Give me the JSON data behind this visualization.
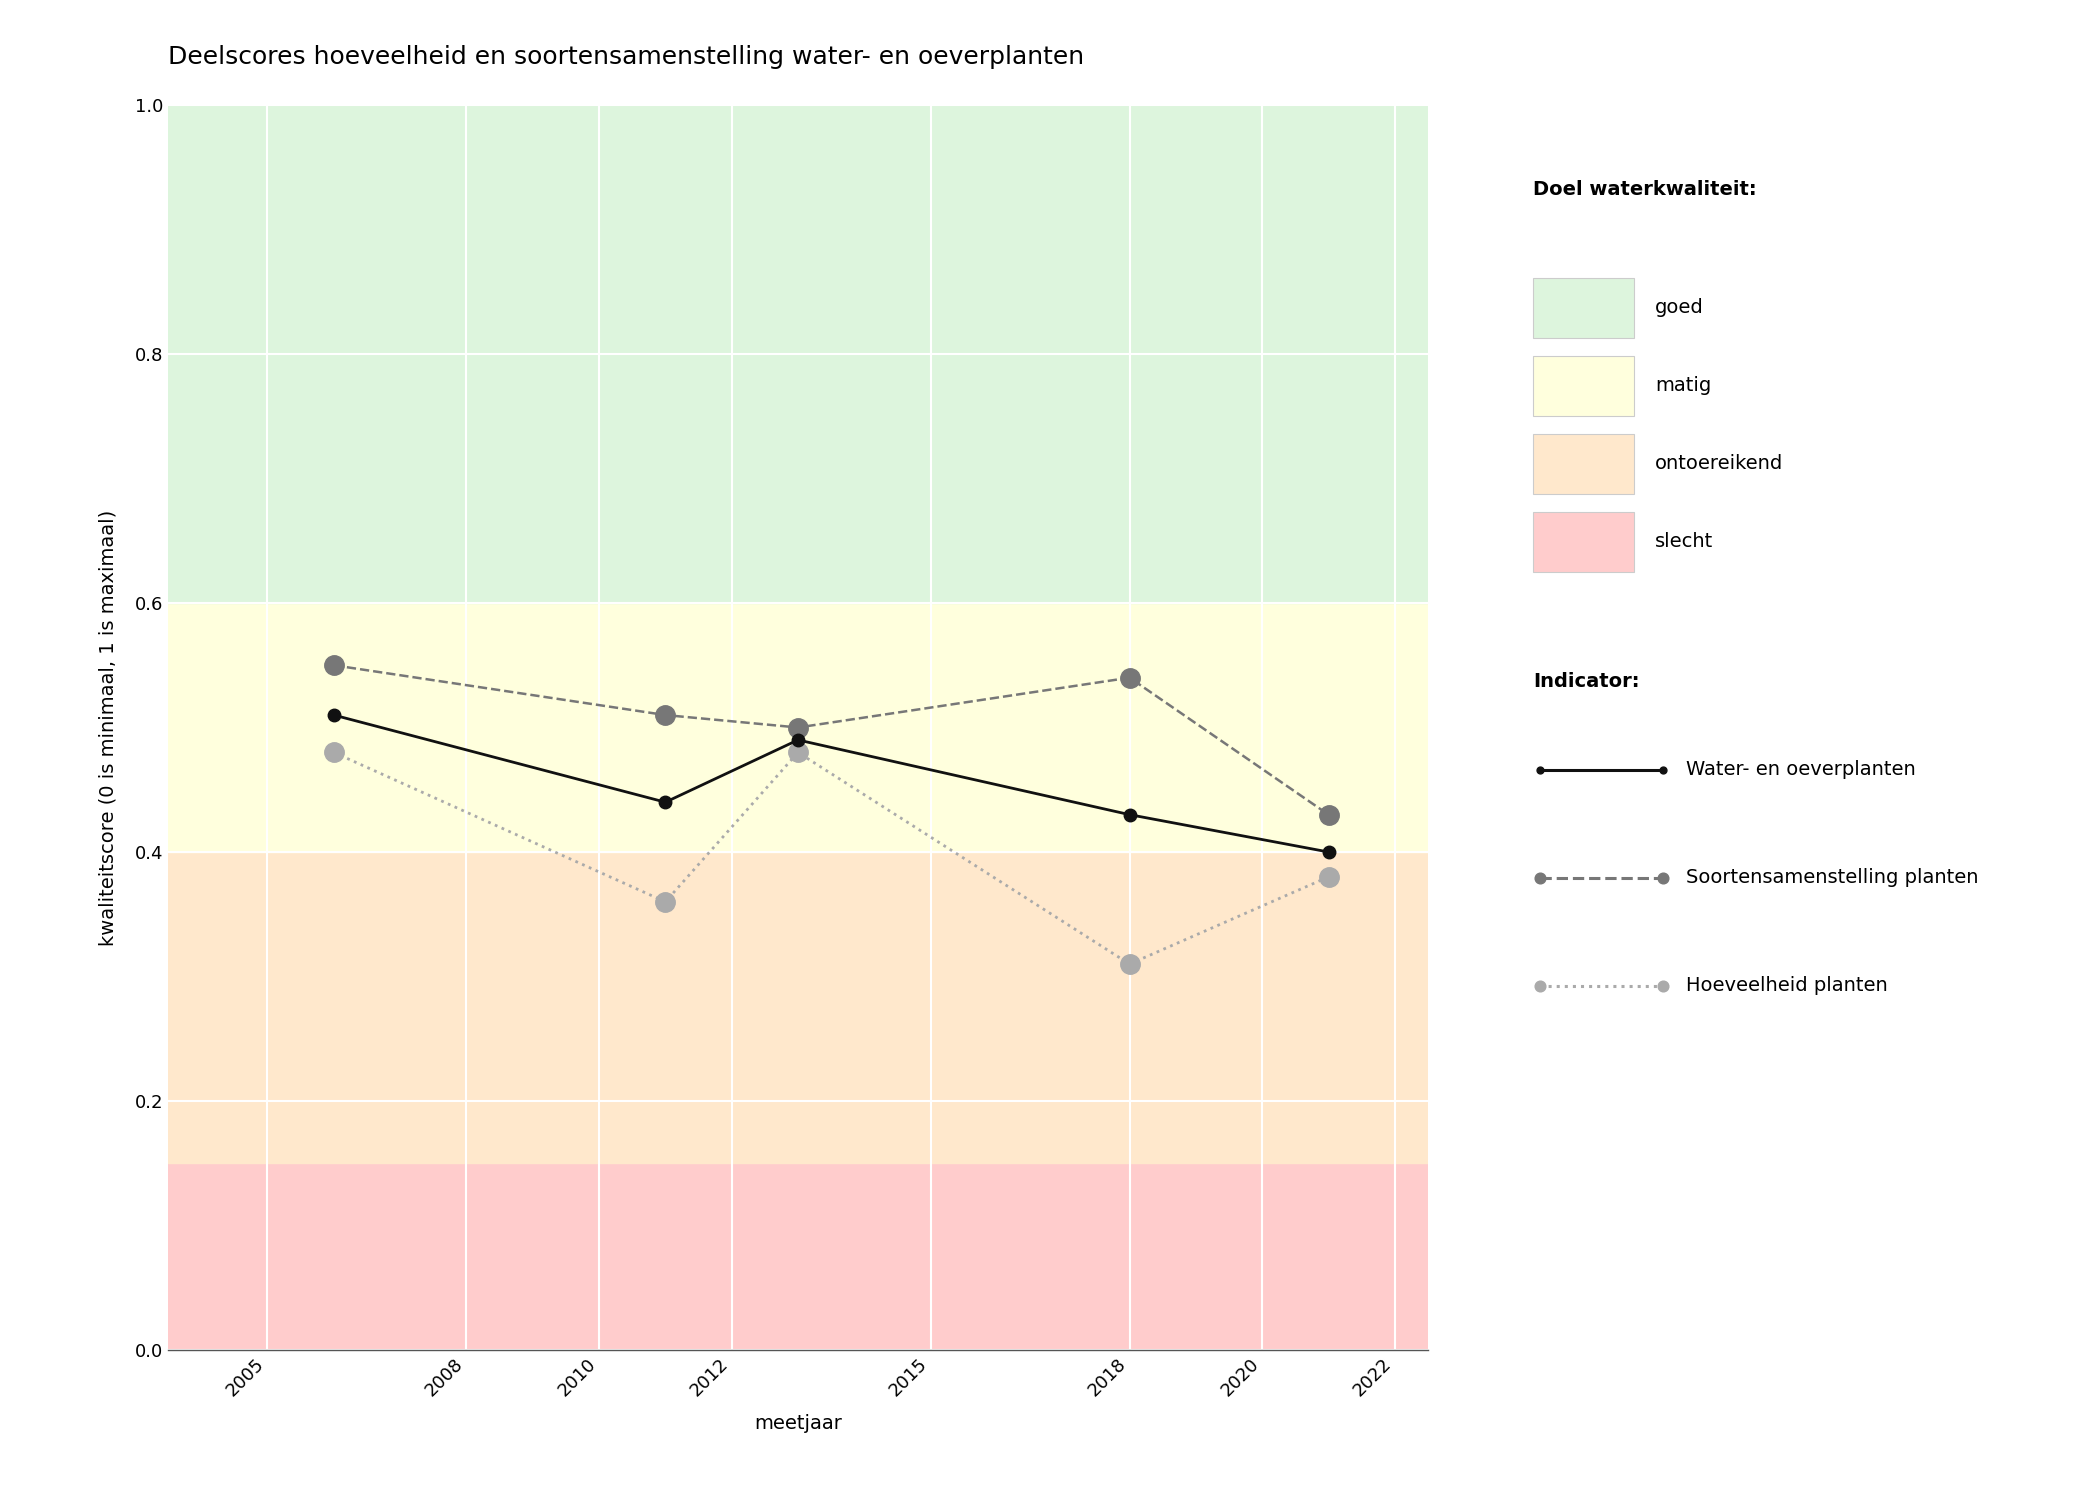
{
  "title": "Deelscores hoeveelheid en soortensamenstelling water- en oeverplanten",
  "xlabel": "meetjaar",
  "ylabel": "kwaliteitscore (0 is minimaal, 1 is maximaal)",
  "xlim": [
    2003.5,
    2022.5
  ],
  "ylim": [
    0.0,
    1.0
  ],
  "xticks": [
    2005,
    2008,
    2010,
    2012,
    2015,
    2018,
    2020,
    2022
  ],
  "yticks": [
    0.0,
    0.2,
    0.4,
    0.6,
    0.8,
    1.0
  ],
  "background_color": "#ffffff",
  "bg_zones": [
    {
      "ymin": 0.0,
      "ymax": 0.15,
      "color": "#ffcccc",
      "label": "slecht"
    },
    {
      "ymin": 0.15,
      "ymax": 0.4,
      "color": "#ffe8cc",
      "label": "ontoereikend"
    },
    {
      "ymin": 0.4,
      "ymax": 0.6,
      "color": "#ffffdd",
      "label": "matig"
    },
    {
      "ymin": 0.6,
      "ymax": 1.0,
      "color": "#ddf5dd",
      "label": "goed"
    }
  ],
  "line_water_oever": {
    "years": [
      2006,
      2011,
      2013,
      2018,
      2021
    ],
    "values": [
      0.51,
      0.44,
      0.49,
      0.43,
      0.4
    ],
    "color": "#111111",
    "linestyle": "-",
    "linewidth": 2.0,
    "marker": "o",
    "markersize": 9,
    "markerfacecolor": "#111111",
    "markeredgecolor": "#111111",
    "label": "Water- en oeverplanten",
    "zorder": 5
  },
  "line_soorten": {
    "years": [
      2006,
      2011,
      2013,
      2018,
      2021
    ],
    "values": [
      0.55,
      0.51,
      0.5,
      0.54,
      0.43
    ],
    "color": "#777777",
    "linestyle": "--",
    "linewidth": 1.8,
    "marker": "o",
    "markersize": 14,
    "markerfacecolor": "#777777",
    "markeredgecolor": "#777777",
    "label": "Soortensamenstelling planten",
    "zorder": 4
  },
  "line_hoeveelheid": {
    "years": [
      2006,
      2011,
      2013,
      2018,
      2021
    ],
    "values": [
      0.48,
      0.36,
      0.48,
      0.31,
      0.38
    ],
    "color": "#aaaaaa",
    "linestyle": ":",
    "linewidth": 2.0,
    "marker": "o",
    "markersize": 14,
    "markerfacecolor": "#aaaaaa",
    "markeredgecolor": "#aaaaaa",
    "label": "Hoeveelheid planten",
    "zorder": 3
  },
  "legend_doel_title": "Doel waterkwaliteit:",
  "legend_indicator_title": "Indicator:",
  "legend_zone_colors": {
    "goed": "#ddf5dd",
    "matig": "#ffffdd",
    "ontoereikend": "#ffe8cc",
    "slecht": "#ffcccc"
  },
  "legend_zone_order": [
    "goed",
    "matig",
    "ontoereikend",
    "slecht"
  ],
  "title_fontsize": 18,
  "label_fontsize": 14,
  "tick_fontsize": 13,
  "legend_fontsize": 14
}
